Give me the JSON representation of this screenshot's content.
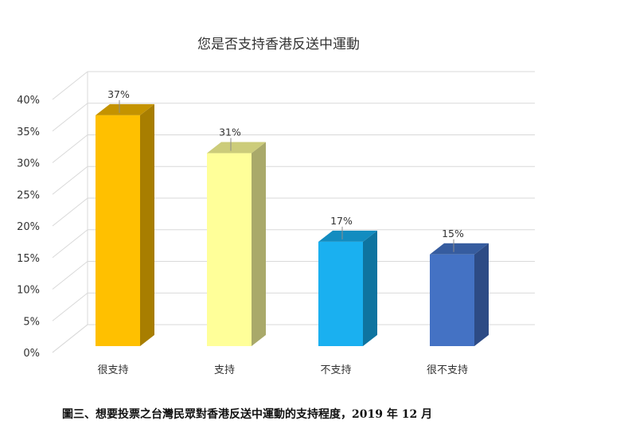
{
  "chart_data": {
    "type": "bar",
    "title": "您是否支持香港反送中運動",
    "categories": [
      "很支持",
      "支持",
      "不支持",
      "很不支持"
    ],
    "values": [
      37,
      31,
      17,
      15
    ],
    "data_labels": [
      "37%",
      "31%",
      "17%",
      "15%"
    ],
    "ylim": [
      0,
      40
    ],
    "yticks": [
      "0%",
      "5%",
      "10%",
      "15%",
      "20%",
      "25%",
      "30%",
      "35%",
      "40%"
    ],
    "ytick_values": [
      0,
      5,
      10,
      15,
      20,
      25,
      30,
      35,
      40
    ],
    "xlabel": "",
    "ylabel": "",
    "grid": true,
    "style": "3d-column",
    "colors": [
      "#FFC000",
      "#FFFF99",
      "#1AB0F0",
      "#4472C4"
    ],
    "side_colors": [
      "#A87E00",
      "#A9A96A",
      "#0E74A0",
      "#2D4B85"
    ],
    "top_colors": [
      "#C49300",
      "#CCCC7A",
      "#138CC0",
      "#365C9F"
    ]
  },
  "caption": "圖三、想要投票之台灣民眾對香港反送中運動的支持程度，2019 年 12 月"
}
